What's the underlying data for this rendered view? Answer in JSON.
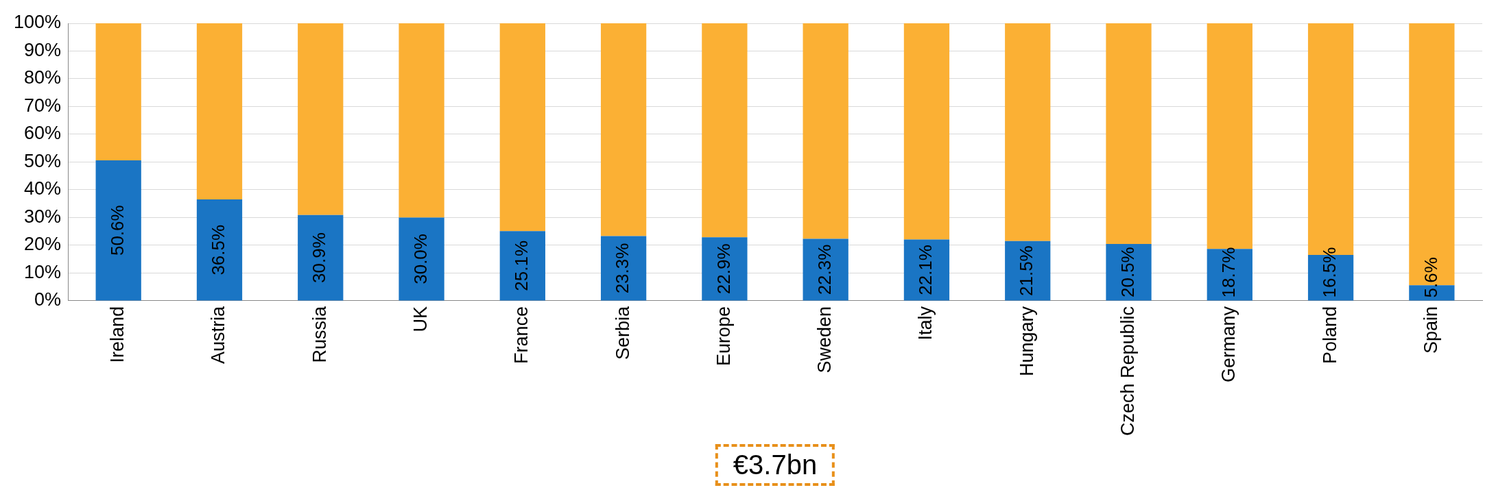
{
  "chart_data": {
    "type": "bar",
    "stacked": true,
    "categories": [
      "Ireland",
      "Austria",
      "Russia",
      "UK",
      "France",
      "Serbia",
      "Europe",
      "Sweden",
      "Italy",
      "Hungary",
      "Czech Republic",
      "Germany",
      "Poland",
      "Spain"
    ],
    "series": [
      {
        "color": "#1a75c4",
        "values": [
          50.6,
          36.5,
          30.9,
          30.0,
          25.1,
          23.3,
          22.9,
          22.3,
          22.1,
          21.5,
          20.5,
          18.7,
          16.5,
          5.6
        ],
        "value_labels": [
          "50.6%",
          "36.5%",
          "30.9%",
          "30.0%",
          "25.1%",
          "23.3%",
          "22.9%",
          "22.3%",
          "22.1%",
          "21.5%",
          "20.5%",
          "18.7%",
          "16.5%",
          "5.6%"
        ]
      },
      {
        "color": "#fbb034",
        "values": [
          49.4,
          63.5,
          69.1,
          70.0,
          74.9,
          76.7,
          77.1,
          77.7,
          77.9,
          78.5,
          79.5,
          81.3,
          83.5,
          94.4
        ]
      }
    ],
    "ylim": [
      0,
      100
    ],
    "yticks": [
      {
        "value": 0,
        "label": "0%"
      },
      {
        "value": 10,
        "label": "10%"
      },
      {
        "value": 20,
        "label": "20%"
      },
      {
        "value": 30,
        "label": "30%"
      },
      {
        "value": 40,
        "label": "40%"
      },
      {
        "value": 50,
        "label": "50%"
      },
      {
        "value": 60,
        "label": "60%"
      },
      {
        "value": 70,
        "label": "70%"
      },
      {
        "value": 80,
        "label": "80%"
      },
      {
        "value": 90,
        "label": "90%"
      },
      {
        "value": 100,
        "label": "100%"
      }
    ],
    "grid": "y",
    "legend": false,
    "annotations": [
      "€3.7bn"
    ]
  }
}
